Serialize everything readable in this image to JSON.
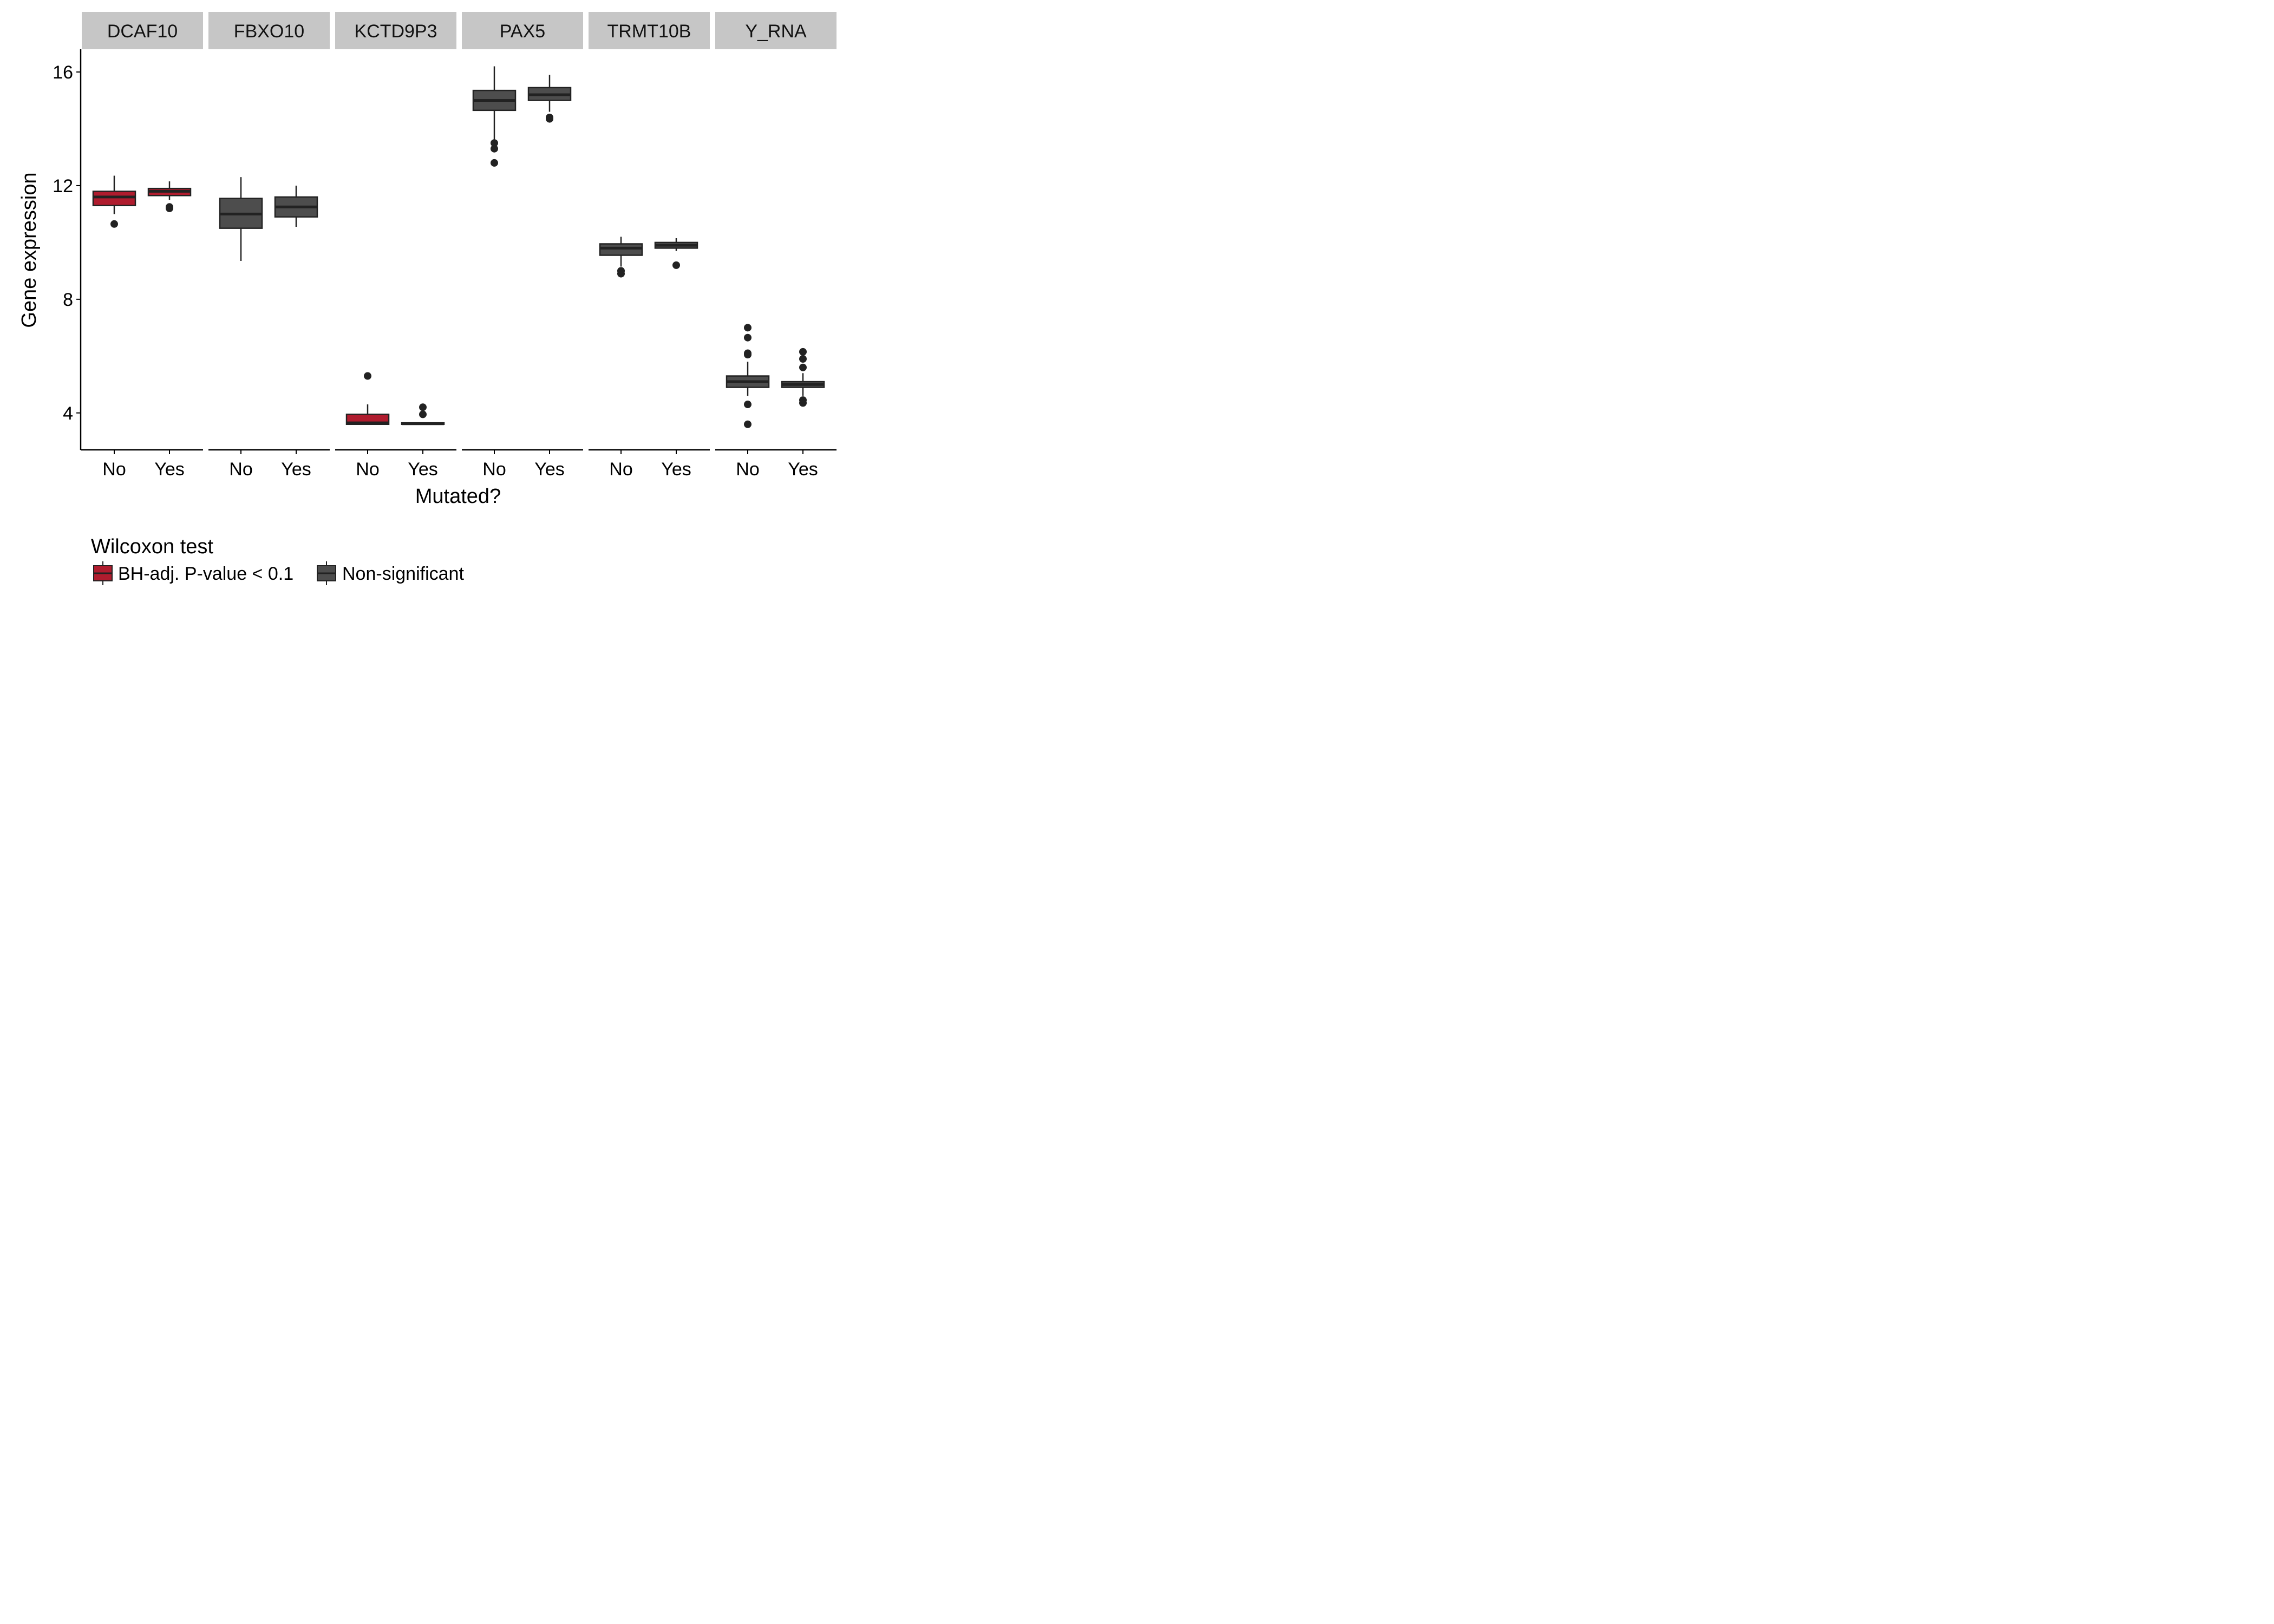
{
  "chart_data": {
    "type": "boxplot",
    "facet_by": "gene",
    "ylabel": "Gene expression",
    "xlabel": "Mutated?",
    "categories": [
      "No",
      "Yes"
    ],
    "ylim": [
      2.7,
      16.8
    ],
    "yticks": [
      4,
      8,
      12,
      16
    ],
    "grid": false,
    "legend": {
      "title": "Wilcoxon test",
      "position": "bottom-left",
      "entries": [
        {
          "label": "BH-adj. P-value < 0.1",
          "color": "#b01c2e"
        },
        {
          "label": "Non-significant",
          "color": "#4d4d4d"
        }
      ]
    },
    "colors": {
      "significant": "#b01c2e",
      "nonsignificant": "#4d4d4d",
      "strip": "#c6c6c6",
      "outline": "#222222"
    },
    "panels": [
      {
        "gene": "DCAF10",
        "status": "significant",
        "boxes": [
          {
            "group": "No",
            "min": 11.0,
            "q1": 11.3,
            "median": 11.6,
            "q3": 11.8,
            "max": 12.35,
            "outliers": [
              10.65
            ]
          },
          {
            "group": "Yes",
            "min": 11.5,
            "q1": 11.65,
            "median": 11.8,
            "q3": 11.9,
            "max": 12.15,
            "outliers": [
              11.2,
              11.25
            ]
          }
        ]
      },
      {
        "gene": "FBXO10",
        "status": "nonsignificant",
        "boxes": [
          {
            "group": "No",
            "min": 9.35,
            "q1": 10.5,
            "median": 11.0,
            "q3": 11.55,
            "max": 12.3,
            "outliers": []
          },
          {
            "group": "Yes",
            "min": 10.55,
            "q1": 10.9,
            "median": 11.25,
            "q3": 11.6,
            "max": 12.0,
            "outliers": []
          }
        ]
      },
      {
        "gene": "KCTD9P3",
        "status": "significant",
        "boxes": [
          {
            "group": "No",
            "min": 3.6,
            "q1": 3.6,
            "median": 3.65,
            "q3": 3.95,
            "max": 4.3,
            "outliers": [
              5.3
            ]
          },
          {
            "group": "Yes",
            "min": 3.6,
            "q1": 3.6,
            "median": 3.62,
            "q3": 3.65,
            "max": 3.65,
            "outliers": [
              3.95,
              4.2
            ]
          }
        ]
      },
      {
        "gene": "PAX5",
        "status": "nonsignificant",
        "boxes": [
          {
            "group": "No",
            "min": 13.6,
            "q1": 14.65,
            "median": 15.0,
            "q3": 15.35,
            "max": 16.2,
            "outliers": [
              13.3,
              13.5,
              12.8
            ]
          },
          {
            "group": "Yes",
            "min": 14.6,
            "q1": 15.0,
            "median": 15.2,
            "q3": 15.45,
            "max": 15.9,
            "outliers": [
              14.35,
              14.4
            ]
          }
        ]
      },
      {
        "gene": "TRMT10B",
        "status": "nonsignificant",
        "boxes": [
          {
            "group": "No",
            "min": 9.15,
            "q1": 9.55,
            "median": 9.8,
            "q3": 9.95,
            "max": 10.2,
            "outliers": [
              9.0,
              8.9
            ]
          },
          {
            "group": "Yes",
            "min": 9.7,
            "q1": 9.8,
            "median": 9.9,
            "q3": 10.0,
            "max": 10.15,
            "outliers": [
              9.2
            ]
          }
        ]
      },
      {
        "gene": "Y_RNA",
        "status": "nonsignificant",
        "boxes": [
          {
            "group": "No",
            "min": 4.6,
            "q1": 4.9,
            "median": 5.1,
            "q3": 5.3,
            "max": 5.8,
            "outliers": [
              7.0,
              6.65,
              6.1,
              6.05,
              4.3,
              3.6
            ]
          },
          {
            "group": "Yes",
            "min": 4.6,
            "q1": 4.9,
            "median": 5.0,
            "q3": 5.1,
            "max": 5.4,
            "outliers": [
              6.15,
              5.9,
              5.6,
              4.45,
              4.35
            ]
          }
        ]
      }
    ]
  }
}
